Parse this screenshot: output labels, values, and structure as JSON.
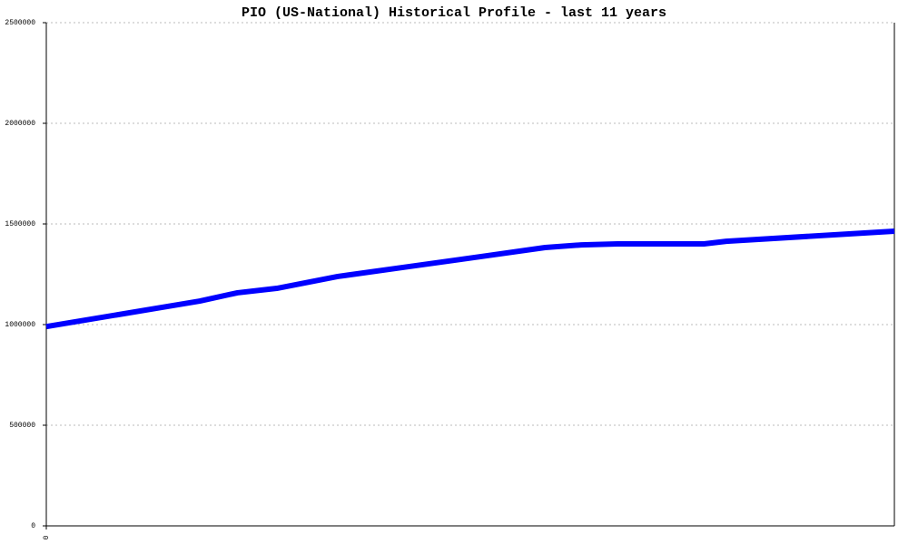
{
  "chart_data": {
    "type": "line",
    "title": "PIO (US-National) Historical Profile - last 11 years",
    "x": [
      0,
      1.99,
      2.48,
      2.99,
      3.78,
      4.7,
      5.64,
      6.47,
      6.94,
      7.41,
      8.53,
      8.82,
      11
    ],
    "series": [
      {
        "name": "PIO",
        "color": "#0000ff",
        "values": [
          990000,
          1117000,
          1158000,
          1180000,
          1239000,
          1288000,
          1338000,
          1383000,
          1396000,
          1401000,
          1401000,
          1414000,
          1464000
        ]
      }
    ],
    "xlim": [
      0,
      11
    ],
    "xticks": [
      0
    ],
    "ylim": [
      0,
      2500000
    ],
    "yticks": [
      0,
      500000,
      1000000,
      1500000,
      2000000,
      2500000
    ],
    "grid": true
  }
}
